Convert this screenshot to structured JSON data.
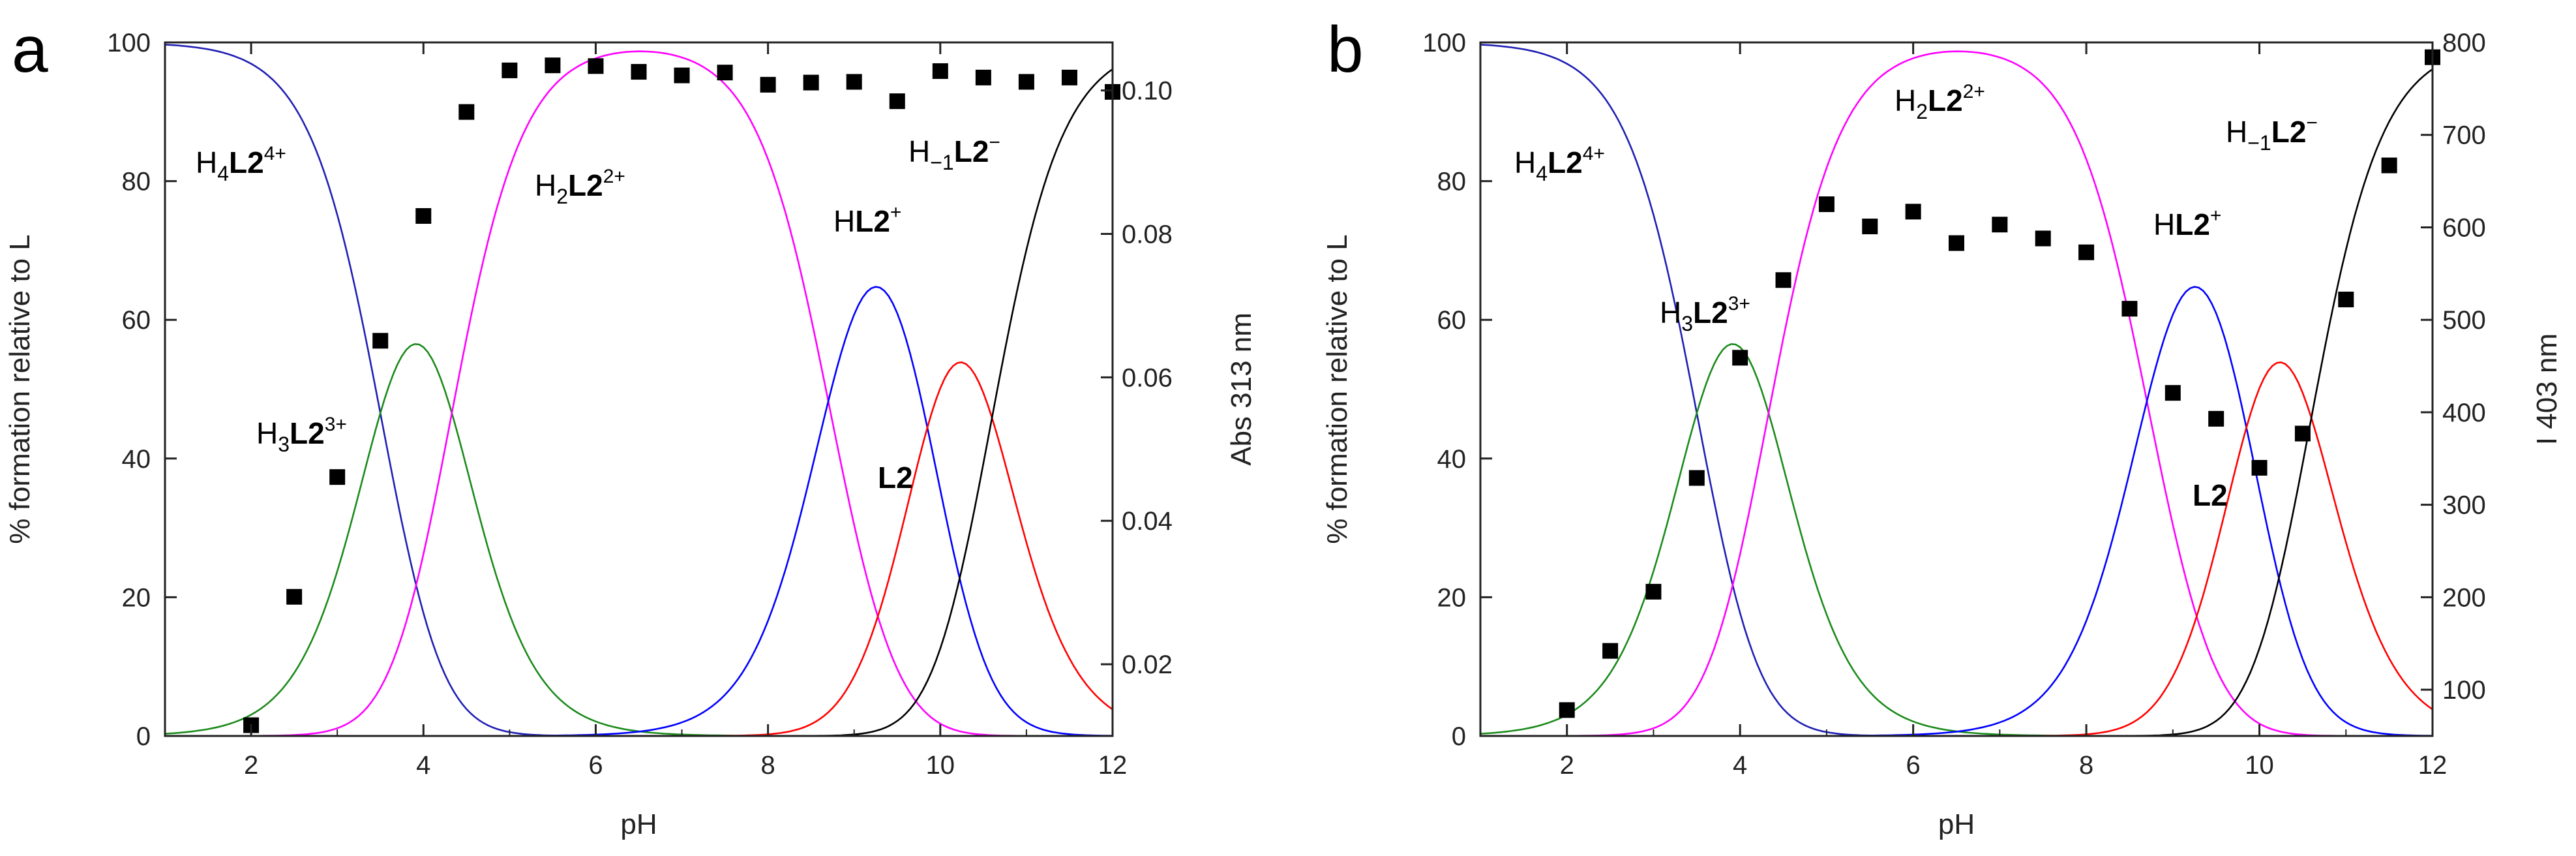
{
  "chart_data": [
    {
      "panel": "a",
      "type": "line+scatter",
      "xlabel": "pH",
      "ylabel": "% formation relative to L",
      "y2label": "Abs 313 nm",
      "xlim": [
        1,
        12
      ],
      "ylim": [
        0,
        100
      ],
      "y2lim": [
        0.01,
        0.1067
      ],
      "xticks": [
        "2",
        "4",
        "6",
        "8",
        "10",
        "12"
      ],
      "yticks": [
        "0",
        "20",
        "40",
        "60",
        "80",
        "100"
      ],
      "y2ticks": [
        "0.02",
        "0.04",
        "0.06",
        "0.08",
        "0.10"
      ],
      "species": [
        {
          "name": "H4L2 4+",
          "pre": "H",
          "sub1": "4",
          "bold": "L2",
          "sup": "4+",
          "color": "#1f1fb4"
        },
        {
          "name": "H3L2 3+",
          "pre": "H",
          "sub1": "3",
          "bold": "L2",
          "sup": "3+",
          "color": "#1a8a1a"
        },
        {
          "name": "H2L2 2+",
          "pre": "H",
          "sub1": "2",
          "bold": "L2",
          "sup": "2+",
          "color": "#ff00ff"
        },
        {
          "name": "HL2 +",
          "pre": "H",
          "sub1": "",
          "bold": "L2",
          "sup": "+",
          "color": "#0000ff"
        },
        {
          "name": "L2",
          "pre": "",
          "sub1": "",
          "bold": "L2",
          "sup": "",
          "color": "#ff0000"
        },
        {
          "name": "H-1L2 -",
          "pre": "H",
          "sub1": "−1",
          "bold": "L2",
          "sup": "−",
          "color": "#000000"
        }
      ],
      "scatter": {
        "x": [
          2,
          2.5,
          3,
          3.5,
          4,
          4.5,
          5,
          5.5,
          6,
          6.5,
          7,
          7.5,
          8,
          8.5,
          9,
          9.5,
          10,
          10.5,
          11,
          11.5,
          12
        ],
        "y": [
          0.0115,
          0.0294,
          0.0461,
          0.0651,
          0.0825,
          0.097,
          0.1028,
          0.1035,
          0.1034,
          0.1026,
          0.1021,
          0.1025,
          0.1008,
          0.1011,
          0.1012,
          0.0985,
          0.1027,
          0.1018,
          0.1012,
          0.1018,
          0.0998
        ]
      }
    },
    {
      "panel": "b",
      "type": "line+scatter",
      "xlabel": "pH",
      "ylabel": "% formation relative to L",
      "y2label": "I 403 nm",
      "xlim": [
        1,
        12
      ],
      "ylim": [
        0,
        100
      ],
      "y2lim": [
        50,
        800
      ],
      "xticks": [
        "2",
        "4",
        "6",
        "8",
        "10",
        "12"
      ],
      "yticks": [
        "0",
        "20",
        "40",
        "60",
        "80",
        "100"
      ],
      "y2ticks": [
        "100",
        "200",
        "300",
        "400",
        "500",
        "600",
        "700",
        "800"
      ],
      "species": [
        {
          "name": "H4L2 4+",
          "pre": "H",
          "sub1": "4",
          "bold": "L2",
          "sup": "4+",
          "color": "#1f1fb4"
        },
        {
          "name": "H3L2 3+",
          "pre": "H",
          "sub1": "3",
          "bold": "L2",
          "sup": "3+",
          "color": "#1a8a1a"
        },
        {
          "name": "H2L2 2+",
          "pre": "H",
          "sub1": "2",
          "bold": "L2",
          "sup": "2+",
          "color": "#ff00ff"
        },
        {
          "name": "HL2 +",
          "pre": "H",
          "sub1": "",
          "bold": "L2",
          "sup": "+",
          "color": "#0000ff"
        },
        {
          "name": "L2",
          "pre": "",
          "sub1": "",
          "bold": "L2",
          "sup": "",
          "color": "#ff0000"
        },
        {
          "name": "H-1L2 -",
          "pre": "H",
          "sub1": "−1",
          "bold": "L2",
          "sup": "−",
          "color": "#000000"
        }
      ],
      "scatter": {
        "x": [
          2,
          2.5,
          3,
          3.5,
          4,
          4.5,
          5,
          5.5,
          6,
          6.5,
          7,
          7.5,
          8,
          8.5,
          9,
          9.5,
          10,
          10.5,
          11,
          11.5,
          12
        ],
        "y": [
          78,
          142,
          206,
          329,
          459,
          543,
          625,
          601,
          617,
          583,
          603,
          588,
          573,
          512,
          421,
          393,
          340,
          377,
          522,
          667,
          784
        ]
      }
    }
  ],
  "species_curves": {
    "pKa": [
      3.5,
      4.33,
      8.7,
      9.85,
      10.6
    ],
    "x_step": 0.05
  }
}
